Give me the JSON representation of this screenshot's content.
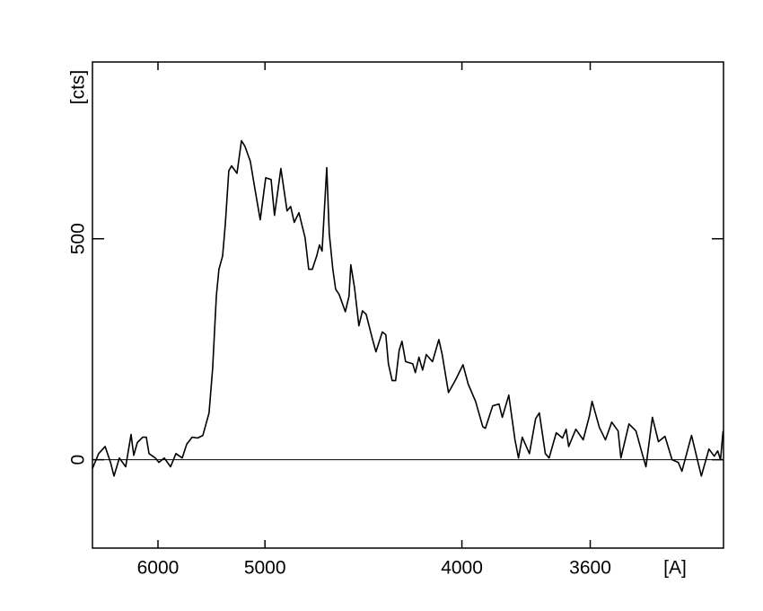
{
  "chart_data": {
    "type": "line",
    "y_label": "[cts]",
    "x_label": "[A]",
    "x_scale": "inverse-square",
    "xlim": [
      7020,
      3290
    ],
    "xticks": [
      6000,
      5000,
      4000,
      3600
    ],
    "ylim": [
      -200,
      900
    ],
    "yticks": [
      0,
      500
    ],
    "reference_line": 0,
    "color": "#000000",
    "x": [
      7020,
      6900,
      6783,
      6689,
      6629,
      6541,
      6443,
      6362,
      6323,
      6272,
      6197,
      6149,
      6114,
      6033,
      5989,
      5924,
      5851,
      5790,
      5722,
      5674,
      5619,
      5565,
      5513,
      5454,
      5421,
      5388,
      5365,
      5333,
      5310,
      5280,
      5257,
      5213,
      5177,
      5149,
      5108,
      5074,
      5034,
      4995,
      4957,
      4933,
      4890,
      4849,
      4826,
      4803,
      4774,
      4736,
      4714,
      4693,
      4667,
      4651,
      4636,
      4610,
      4596,
      4576,
      4561,
      4542,
      4509,
      4490,
      4481,
      4462,
      4440,
      4422,
      4404,
      4374,
      4357,
      4327,
      4311,
      4299,
      4282,
      4267,
      4251,
      4239,
      4223,
      4193,
      4182,
      4167,
      4152,
      4137,
      4112,
      4087,
      4074,
      4050,
      4023,
      3996,
      3977,
      3951,
      3926,
      3917,
      3892,
      3871,
      3860,
      3839,
      3819,
      3808,
      3796,
      3774,
      3755,
      3744,
      3726,
      3715,
      3694,
      3676,
      3666,
      3659,
      3639,
      3619,
      3602,
      3595,
      3576,
      3560,
      3544,
      3528,
      3521,
      3501,
      3484,
      3469,
      3460,
      3445,
      3431,
      3416,
      3400,
      3386,
      3378,
      3357,
      3336,
      3320,
      3309,
      3302,
      3296,
      3291
    ],
    "values": [
      -20,
      14,
      30,
      -6,
      -37,
      4,
      -16,
      57,
      10,
      39,
      51,
      51,
      14,
      4,
      -6,
      4,
      -16,
      14,
      4,
      35,
      51,
      49,
      55,
      106,
      207,
      370,
      431,
      461,
      533,
      654,
      665,
      648,
      722,
      709,
      675,
      614,
      543,
      638,
      634,
      553,
      659,
      563,
      573,
      537,
      559,
      502,
      431,
      431,
      461,
      486,
      472,
      661,
      512,
      431,
      386,
      374,
      335,
      370,
      441,
      390,
      303,
      337,
      329,
      274,
      244,
      289,
      283,
      217,
      179,
      179,
      248,
      268,
      222,
      217,
      197,
      232,
      203,
      238,
      222,
      272,
      238,
      152,
      181,
      215,
      171,
      132,
      75,
      71,
      122,
      126,
      96,
      146,
      45,
      4,
      51,
      14,
      93,
      106,
      14,
      4,
      61,
      49,
      69,
      30,
      69,
      45,
      100,
      132,
      73,
      45,
      85,
      65,
      4,
      81,
      65,
      14,
      -16,
      96,
      41,
      53,
      0,
      -6,
      -26,
      55,
      -37,
      24,
      8,
      20,
      0,
      65
    ]
  }
}
